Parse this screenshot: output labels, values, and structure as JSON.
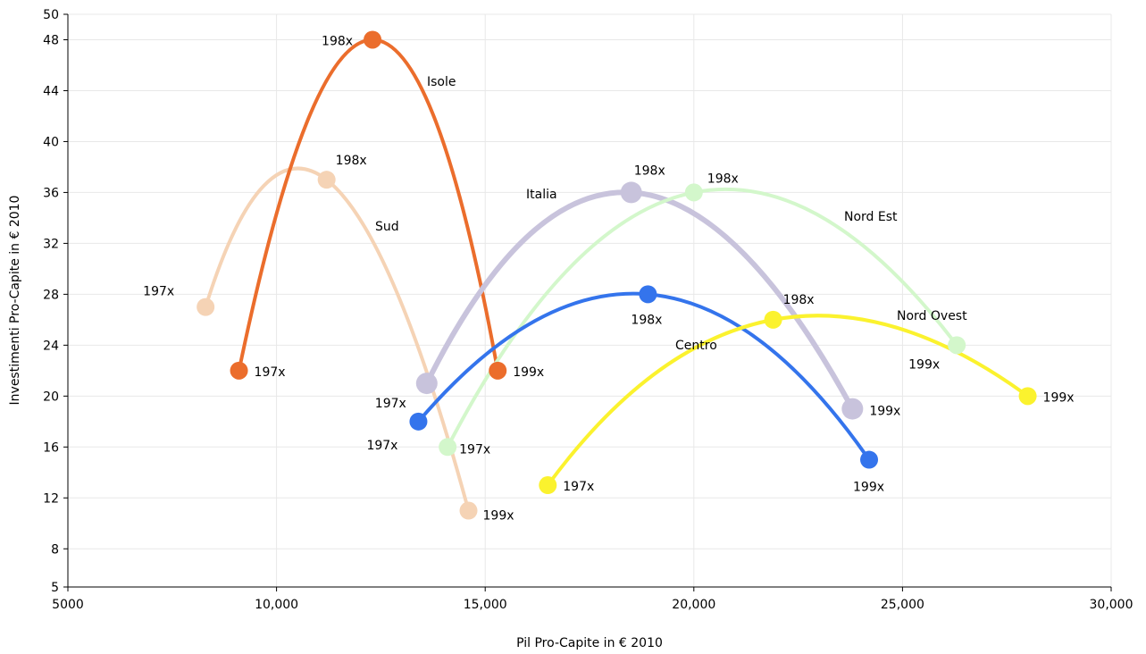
{
  "chart_data": {
    "type": "line",
    "xlabel": "Pil Pro-Capite in € 2010",
    "ylabel": "Investimenti Pro-Capite in € 2010",
    "xlim": [
      5000,
      30000
    ],
    "ylim": [
      5,
      50
    ],
    "xticks": [
      5000,
      10000,
      15000,
      20000,
      25000,
      30000
    ],
    "xtick_labels": [
      "5000",
      "10,000",
      "15,000",
      "20,000",
      "25,000",
      "30,000"
    ],
    "yticks": [
      5,
      8,
      12,
      16,
      20,
      24,
      28,
      32,
      36,
      40,
      44,
      48,
      50
    ],
    "ytick_labels": [
      "5",
      "8",
      "12",
      "16",
      "20",
      "24",
      "28",
      "32",
      "36",
      "40",
      "44",
      "48",
      "50"
    ],
    "grid": true,
    "series": [
      {
        "name": "Sud",
        "color": "#f5d3b5",
        "width": 4,
        "points": [
          {
            "x": 8300,
            "y": 27,
            "label": "197x"
          },
          {
            "x": 11200,
            "y": 37,
            "label": "198x"
          },
          {
            "x": 14600,
            "y": 11,
            "label": "199x"
          }
        ]
      },
      {
        "name": "Isole",
        "color": "#eb6d2c",
        "width": 4,
        "points": [
          {
            "x": 9100,
            "y": 22,
            "label": "197x"
          },
          {
            "x": 12300,
            "y": 48,
            "label": "198x"
          },
          {
            "x": 15300,
            "y": 22,
            "label": "199x"
          }
        ]
      },
      {
        "name": "Italia",
        "color": "#c8c3dc",
        "width": 6,
        "points": [
          {
            "x": 13600,
            "y": 21,
            "label": "197x"
          },
          {
            "x": 18500,
            "y": 36,
            "label": "198x"
          },
          {
            "x": 23800,
            "y": 19,
            "label": "199x"
          }
        ]
      },
      {
        "name": "Nord Est",
        "color": "#d3f7cb",
        "width": 4,
        "points": [
          {
            "x": 14100,
            "y": 16,
            "label": "197x"
          },
          {
            "x": 20000,
            "y": 36,
            "label": "198x"
          },
          {
            "x": 26300,
            "y": 24,
            "label": "199x"
          }
        ]
      },
      {
        "name": "Centro",
        "color": "#3474ec",
        "width": 4,
        "points": [
          {
            "x": 13400,
            "y": 18,
            "label": "197x"
          },
          {
            "x": 18900,
            "y": 28,
            "label": "198x"
          },
          {
            "x": 24200,
            "y": 15,
            "label": "199x"
          }
        ]
      },
      {
        "name": "Nord Ovest",
        "color": "#fbf22e",
        "width": 4,
        "points": [
          {
            "x": 16500,
            "y": 13,
            "label": "197x"
          },
          {
            "x": 21900,
            "y": 26,
            "label": "198x"
          },
          {
            "x": 28000,
            "y": 20,
            "label": "199x"
          }
        ]
      }
    ]
  }
}
